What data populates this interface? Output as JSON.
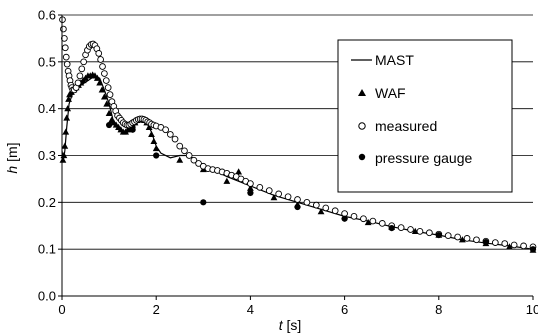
{
  "chart_data": {
    "type": "scatter",
    "xlabel": {
      "symbol": "t",
      "unit": " [s]"
    },
    "ylabel": {
      "symbol": "h",
      "unit": " [m]"
    },
    "xlim": [
      0,
      10
    ],
    "ylim": [
      0,
      0.6
    ],
    "x_ticks": [
      "0",
      "2",
      "4",
      "6",
      "8",
      "10"
    ],
    "y_ticks": [
      "0.0",
      "0.1",
      "0.2",
      "0.3",
      "0.4",
      "0.5",
      "0.6"
    ],
    "grid": "horizontal",
    "legend_position": "top-right",
    "series": [
      {
        "name": "MAST",
        "style": "line",
        "x": [
          0.0,
          0.03,
          0.06,
          0.1,
          0.15,
          0.25,
          0.4,
          0.55,
          0.7,
          0.8,
          0.9,
          1.0,
          1.1,
          1.2,
          1.3,
          1.4,
          1.5,
          1.6,
          1.7,
          1.8,
          1.9,
          2.0,
          2.1,
          2.3,
          2.5,
          2.7,
          2.9,
          3.2,
          3.5,
          4.0,
          4.5,
          5.0,
          5.5,
          6.0,
          6.5,
          7.0,
          7.5,
          8.0,
          8.5,
          9.0,
          9.5,
          10.0
        ],
        "y": [
          0.31,
          0.29,
          0.31,
          0.36,
          0.41,
          0.44,
          0.45,
          0.46,
          0.47,
          0.465,
          0.44,
          0.41,
          0.37,
          0.355,
          0.35,
          0.35,
          0.36,
          0.37,
          0.375,
          0.37,
          0.35,
          0.32,
          0.305,
          0.295,
          0.3,
          0.3,
          0.285,
          0.27,
          0.255,
          0.235,
          0.215,
          0.2,
          0.185,
          0.17,
          0.16,
          0.148,
          0.138,
          0.13,
          0.12,
          0.113,
          0.107,
          0.1
        ]
      },
      {
        "name": "WAF",
        "style": "triangle",
        "x": [
          0.02,
          0.04,
          0.06,
          0.08,
          0.1,
          0.12,
          0.14,
          0.16,
          0.2,
          0.25,
          0.3,
          0.35,
          0.4,
          0.45,
          0.5,
          0.55,
          0.6,
          0.65,
          0.7,
          0.75,
          0.8,
          0.85,
          0.9,
          0.95,
          1.0,
          1.05,
          1.1,
          1.15,
          1.2,
          1.25,
          1.3,
          1.35,
          1.4,
          1.45,
          1.5,
          1.55,
          1.6,
          1.65,
          1.7,
          1.75,
          1.8,
          1.85,
          1.9,
          1.95,
          2.0,
          2.5,
          3.0,
          3.5,
          3.75,
          4.0,
          4.5,
          5.0,
          5.5,
          6.0,
          6.5,
          7.0,
          7.5,
          8.0,
          8.5,
          9.0,
          9.5,
          10.0
        ],
        "y": [
          0.29,
          0.3,
          0.32,
          0.35,
          0.38,
          0.4,
          0.42,
          0.43,
          0.435,
          0.44,
          0.445,
          0.45,
          0.455,
          0.46,
          0.465,
          0.47,
          0.47,
          0.472,
          0.47,
          0.465,
          0.455,
          0.44,
          0.425,
          0.41,
          0.39,
          0.375,
          0.37,
          0.365,
          0.36,
          0.355,
          0.35,
          0.35,
          0.355,
          0.36,
          0.365,
          0.37,
          0.375,
          0.378,
          0.378,
          0.375,
          0.37,
          0.36,
          0.345,
          0.33,
          0.315,
          0.29,
          0.27,
          0.245,
          0.265,
          0.23,
          0.21,
          0.195,
          0.18,
          0.17,
          0.157,
          0.147,
          0.138,
          0.13,
          0.12,
          0.112,
          0.105,
          0.098
        ]
      },
      {
        "name": "measured",
        "style": "circle-open",
        "x": [
          0.01,
          0.03,
          0.05,
          0.07,
          0.09,
          0.11,
          0.13,
          0.15,
          0.17,
          0.19,
          0.21,
          0.23,
          0.26,
          0.3,
          0.34,
          0.38,
          0.42,
          0.46,
          0.5,
          0.54,
          0.58,
          0.62,
          0.66,
          0.7,
          0.74,
          0.78,
          0.82,
          0.86,
          0.9,
          0.94,
          0.98,
          1.02,
          1.06,
          1.1,
          1.14,
          1.18,
          1.22,
          1.26,
          1.3,
          1.34,
          1.38,
          1.42,
          1.46,
          1.5,
          1.54,
          1.58,
          1.62,
          1.66,
          1.7,
          1.74,
          1.78,
          1.82,
          1.86,
          1.9,
          1.95,
          2.0,
          2.1,
          2.2,
          2.3,
          2.4,
          2.5,
          2.6,
          2.7,
          2.8,
          2.9,
          3.0,
          3.1,
          3.2,
          3.3,
          3.4,
          3.5,
          3.6,
          3.7,
          3.8,
          3.9,
          4.0,
          4.2,
          4.4,
          4.6,
          4.8,
          5.0,
          5.2,
          5.4,
          5.6,
          5.8,
          6.0,
          6.2,
          6.4,
          6.6,
          6.8,
          7.0,
          7.2,
          7.4,
          7.6,
          7.8,
          8.0,
          8.2,
          8.4,
          8.6,
          8.8,
          9.0,
          9.2,
          9.4,
          9.6,
          9.8,
          10.0
        ],
        "y": [
          0.59,
          0.57,
          0.55,
          0.53,
          0.51,
          0.495,
          0.48,
          0.47,
          0.46,
          0.45,
          0.445,
          0.44,
          0.44,
          0.445,
          0.455,
          0.47,
          0.485,
          0.5,
          0.515,
          0.525,
          0.533,
          0.537,
          0.538,
          0.535,
          0.528,
          0.518,
          0.505,
          0.49,
          0.475,
          0.46,
          0.445,
          0.43,
          0.415,
          0.405,
          0.395,
          0.385,
          0.38,
          0.375,
          0.37,
          0.367,
          0.365,
          0.365,
          0.367,
          0.37,
          0.372,
          0.375,
          0.377,
          0.378,
          0.378,
          0.377,
          0.375,
          0.372,
          0.37,
          0.367,
          0.365,
          0.363,
          0.36,
          0.355,
          0.345,
          0.335,
          0.32,
          0.31,
          0.3,
          0.29,
          0.283,
          0.277,
          0.272,
          0.27,
          0.268,
          0.265,
          0.262,
          0.258,
          0.255,
          0.25,
          0.245,
          0.24,
          0.232,
          0.225,
          0.218,
          0.212,
          0.206,
          0.2,
          0.194,
          0.188,
          0.182,
          0.176,
          0.17,
          0.165,
          0.16,
          0.155,
          0.15,
          0.146,
          0.142,
          0.138,
          0.135,
          0.132,
          0.129,
          0.126,
          0.123,
          0.12,
          0.117,
          0.114,
          0.112,
          0.109,
          0.107,
          0.105
        ]
      },
      {
        "name": "pressure gauge",
        "style": "circle-filled",
        "x": [
          1.0,
          1.5,
          2.0,
          3.0,
          4.0,
          5.0,
          6.0,
          7.0,
          8.0,
          9.0,
          10.0
        ],
        "y": [
          0.365,
          0.355,
          0.3,
          0.2,
          0.22,
          0.19,
          0.165,
          0.145,
          0.13,
          0.115,
          0.1
        ]
      }
    ]
  }
}
